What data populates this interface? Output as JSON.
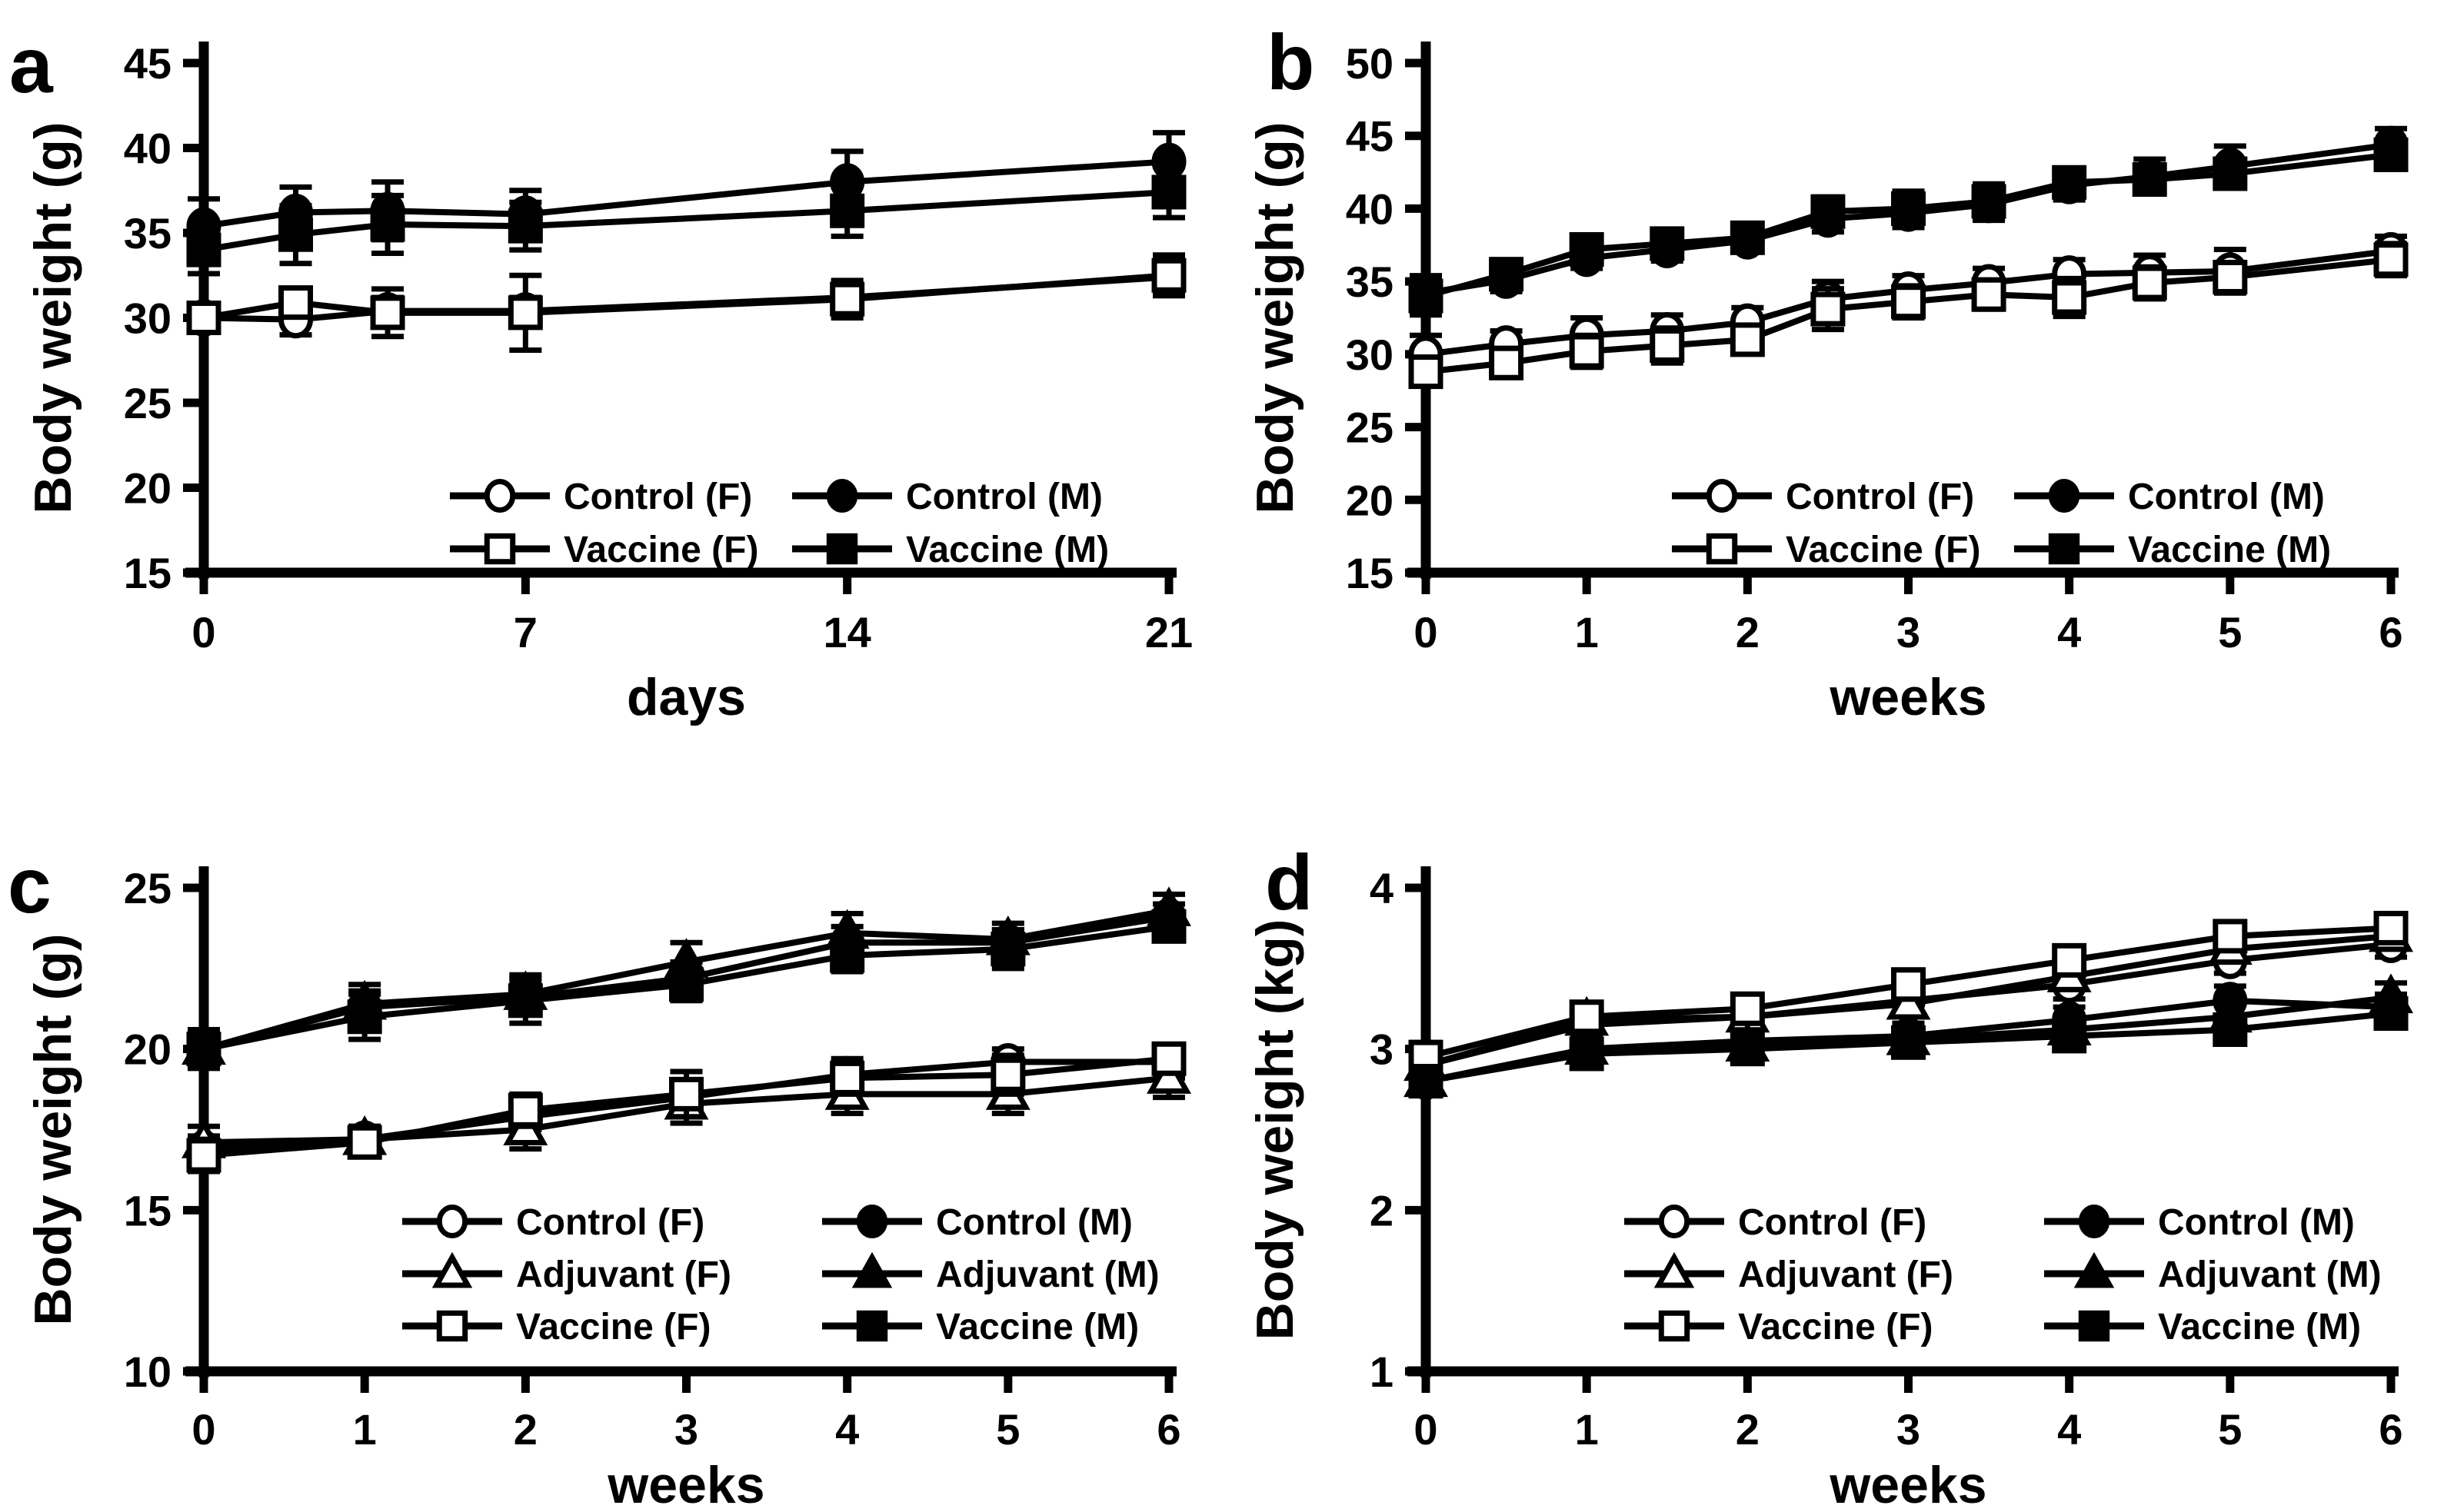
{
  "figure": {
    "description": "Four-panel body weight line figure with error bars",
    "ink": "#000000",
    "background": "#ffffff",
    "panel_letters": [
      "a",
      "b",
      "c",
      "d"
    ]
  },
  "chart_data": [
    {
      "panel_label": "a",
      "type": "line",
      "title": "",
      "xlabel": "days",
      "ylabel": "Body weight (g)",
      "xlim": [
        0,
        21
      ],
      "ylim": [
        15,
        45
      ],
      "xticks": [
        0,
        7,
        14,
        21
      ],
      "yticks": [
        15,
        20,
        25,
        30,
        35,
        40,
        45
      ],
      "grid": false,
      "error_bars": true,
      "legend_position": "inside-bottom-center",
      "legend_columns": 2,
      "x": [
        0,
        2,
        4,
        7,
        14,
        21
      ],
      "series": [
        {
          "name": "Control (F)",
          "marker": "circle-open",
          "values": [
            30.0,
            29.9,
            30.4,
            30.4,
            31.2,
            32.4
          ],
          "err": [
            0.7,
            0.9,
            0.8,
            0.8,
            0.9,
            1.0
          ]
        },
        {
          "name": "Control (M)",
          "marker": "circle-filled",
          "values": [
            35.4,
            36.2,
            36.3,
            36.1,
            38.0,
            39.2
          ],
          "err": [
            1.6,
            1.5,
            1.7,
            1.4,
            1.8,
            1.7
          ]
        },
        {
          "name": "Vaccine (F)",
          "marker": "square-open",
          "values": [
            30.0,
            30.9,
            30.3,
            30.3,
            31.1,
            32.5
          ],
          "err": [
            0.8,
            0.7,
            1.4,
            2.2,
            1.1,
            1.2
          ]
        },
        {
          "name": "Vaccine (M)",
          "marker": "square-filled",
          "values": [
            34.0,
            34.9,
            35.5,
            35.4,
            36.3,
            37.4
          ],
          "err": [
            1.4,
            1.7,
            1.7,
            1.4,
            1.5,
            1.5
          ]
        }
      ]
    },
    {
      "panel_label": "b",
      "type": "line",
      "title": "",
      "xlabel": "weeks",
      "ylabel": "Body weight (g)",
      "xlim": [
        0,
        6
      ],
      "ylim": [
        15,
        50
      ],
      "xticks": [
        0,
        1,
        2,
        3,
        4,
        5,
        6
      ],
      "yticks": [
        15,
        20,
        25,
        30,
        35,
        40,
        45,
        50
      ],
      "grid": false,
      "error_bars": true,
      "legend_position": "inside-bottom-center",
      "legend_columns": 2,
      "x": [
        0,
        0.5,
        1,
        1.5,
        2,
        2.5,
        3,
        3.5,
        4,
        4.5,
        5,
        6
      ],
      "series": [
        {
          "name": "Control (F)",
          "marker": "circle-open",
          "values": [
            30.0,
            30.7,
            31.3,
            31.6,
            32.2,
            33.8,
            34.4,
            34.9,
            35.5,
            35.6,
            35.7,
            37.1
          ],
          "err": [
            1.3,
            0.9,
            1.2,
            1.1,
            1.0,
            1.2,
            1.0,
            1.0,
            1.0,
            1.2,
            1.5,
            1.0
          ]
        },
        {
          "name": "Control (M)",
          "marker": "circle-filled",
          "values": [
            34.2,
            35.1,
            36.6,
            37.2,
            37.8,
            39.3,
            39.7,
            40.3,
            41.6,
            42.2,
            42.9,
            44.4
          ],
          "err": [
            1.2,
            0.8,
            0.7,
            0.8,
            0.7,
            0.9,
            1.0,
            1.1,
            1.0,
            1.2,
            1.4,
            1.1
          ]
        },
        {
          "name": "Vaccine (F)",
          "marker": "square-open",
          "values": [
            28.8,
            29.4,
            30.2,
            30.6,
            31.0,
            33.1,
            33.6,
            34.1,
            33.9,
            34.9,
            35.3,
            36.5
          ],
          "err": [
            1.0,
            1.0,
            1.1,
            1.2,
            0.9,
            1.4,
            1.1,
            1.0,
            1.3,
            1.1,
            1.0,
            1.1
          ]
        },
        {
          "name": "Vaccine (M)",
          "marker": "square-filled",
          "values": [
            34.0,
            35.5,
            37.2,
            37.6,
            38.0,
            39.8,
            40.0,
            40.5,
            41.8,
            42.0,
            42.4,
            43.7
          ],
          "err": [
            1.3,
            0.9,
            0.8,
            0.9,
            0.9,
            1.0,
            1.2,
            1.2,
            1.0,
            1.0,
            0.9,
            1.0
          ]
        }
      ]
    },
    {
      "panel_label": "c",
      "type": "line",
      "title": "",
      "xlabel": "weeks",
      "ylabel": "Body weight (g)",
      "xlim": [
        0,
        6
      ],
      "ylim": [
        10,
        25
      ],
      "xticks": [
        0,
        1,
        2,
        3,
        4,
        5,
        6
      ],
      "yticks": [
        10,
        15,
        20,
        25
      ],
      "grid": false,
      "error_bars": true,
      "legend_position": "inside-bottom-center",
      "legend_columns": 2,
      "x": [
        0,
        1,
        2,
        3,
        4,
        5,
        6
      ],
      "series": [
        {
          "name": "Control (F)",
          "marker": "circle-open",
          "values": [
            16.9,
            17.2,
            17.9,
            18.5,
            19.2,
            19.6,
            19.6
          ],
          "err": [
            0.4,
            0.4,
            0.4,
            0.5,
            0.5,
            0.4,
            0.5
          ]
        },
        {
          "name": "Control (M)",
          "marker": "circle-filled",
          "values": [
            20.0,
            21.3,
            21.6,
            22.2,
            23.3,
            23.3,
            24.1
          ],
          "err": [
            0.5,
            0.5,
            0.5,
            0.5,
            0.5,
            0.4,
            0.4
          ]
        },
        {
          "name": "Adjuvant (F)",
          "marker": "triangle-open",
          "values": [
            17.1,
            17.2,
            17.5,
            18.3,
            18.6,
            18.6,
            19.1
          ],
          "err": [
            0.5,
            0.4,
            0.6,
            0.6,
            0.6,
            0.6,
            0.6
          ]
        },
        {
          "name": "Adjuvant (M)",
          "marker": "triangle-filled",
          "values": [
            20.0,
            21.4,
            21.7,
            22.7,
            23.6,
            23.4,
            24.3
          ],
          "err": [
            0.6,
            0.6,
            0.6,
            0.6,
            0.6,
            0.5,
            0.5
          ]
        },
        {
          "name": "Vaccine (F)",
          "marker": "square-open",
          "values": [
            16.7,
            17.1,
            18.1,
            18.6,
            19.1,
            19.2,
            19.7
          ],
          "err": [
            0.5,
            0.4,
            0.5,
            0.7,
            0.5,
            0.6,
            0.4
          ]
        },
        {
          "name": "Vaccine (M)",
          "marker": "square-filled",
          "values": [
            20.0,
            21.0,
            21.5,
            22.0,
            22.9,
            23.1,
            23.8
          ],
          "err": [
            0.5,
            0.7,
            0.7,
            0.5,
            0.5,
            0.6,
            0.4
          ]
        }
      ]
    },
    {
      "panel_label": "d",
      "type": "line",
      "title": "",
      "xlabel": "weeks",
      "ylabel": "Body weight (kg)",
      "xlim": [
        0,
        6
      ],
      "ylim": [
        1,
        4
      ],
      "xticks": [
        0,
        1,
        2,
        3,
        4,
        5,
        6
      ],
      "yticks": [
        1,
        2,
        3,
        4
      ],
      "grid": false,
      "error_bars": true,
      "legend_position": "inside-bottom-center",
      "legend_columns": 2,
      "x": [
        0,
        1,
        2,
        3,
        4,
        5,
        6
      ],
      "series": [
        {
          "name": "Control (F)",
          "marker": "circle-open",
          "values": [
            2.9,
            3.15,
            3.2,
            3.3,
            3.4,
            3.55,
            3.65
          ],
          "err": [
            0.08,
            0.07,
            0.08,
            0.08,
            0.09,
            0.08,
            0.08
          ]
        },
        {
          "name": "Control (M)",
          "marker": "circle-filled",
          "values": [
            2.8,
            3.0,
            3.05,
            3.08,
            3.18,
            3.3,
            3.26
          ],
          "err": [
            0.08,
            0.07,
            0.07,
            0.08,
            0.08,
            0.09,
            0.08
          ]
        },
        {
          "name": "Adjuvant (F)",
          "marker": "triangle-open",
          "values": [
            2.9,
            3.18,
            3.2,
            3.28,
            3.45,
            3.62,
            3.7
          ],
          "err": [
            0.07,
            0.06,
            0.07,
            0.07,
            0.08,
            0.08,
            0.08
          ]
        },
        {
          "name": "Adjuvant (M)",
          "marker": "triangle-filled",
          "values": [
            2.8,
            3.0,
            3.02,
            3.06,
            3.12,
            3.2,
            3.32
          ],
          "err": [
            0.08,
            0.06,
            0.07,
            0.07,
            0.07,
            0.08,
            0.09
          ]
        },
        {
          "name": "Vaccine (F)",
          "marker": "square-open",
          "values": [
            2.95,
            3.2,
            3.25,
            3.4,
            3.55,
            3.7,
            3.75
          ],
          "err": [
            0.09,
            0.07,
            0.08,
            0.09,
            0.08,
            0.08,
            0.07
          ]
        },
        {
          "name": "Vaccine (M)",
          "marker": "square-filled",
          "values": [
            2.8,
            2.97,
            3.0,
            3.04,
            3.08,
            3.12,
            3.22
          ],
          "err": [
            0.09,
            0.07,
            0.08,
            0.08,
            0.08,
            0.09,
            0.08
          ]
        }
      ]
    }
  ]
}
